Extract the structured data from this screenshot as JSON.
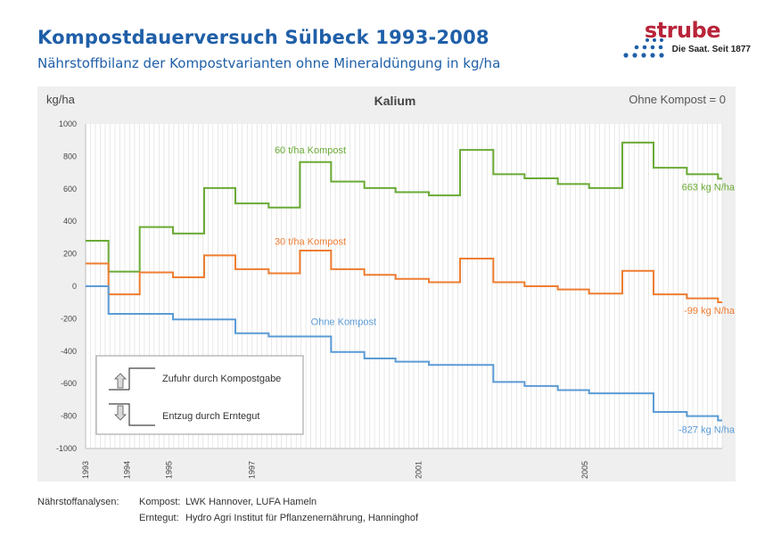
{
  "header": {
    "title": "Kompostdauerversuch Sülbeck 1993-2008",
    "subtitle": "Nährstoffbilanz der Kompostvarianten ohne Mineraldüngung in kg/ha"
  },
  "logo": {
    "word": "strube",
    "tagline": "Die Saat. Seit 1877",
    "colors": {
      "word": "#b8243a",
      "dots": "#1f5fa8"
    }
  },
  "footer": {
    "label": "Nährstoffanalysen:",
    "rows": [
      {
        "key": "Kompost:",
        "value": "LWK Hannover, LUFA Hameln"
      },
      {
        "key": "Erntegut:",
        "value": "Hydro Agri Institut für Pflanzenernährung, Hanninghof"
      }
    ]
  },
  "chart_data": {
    "type": "line",
    "step": true,
    "title": "Kalium",
    "ylabel": "kg/ha",
    "note": "Ohne Kompost = 0",
    "ylim": [
      -1000,
      1000
    ],
    "yticks": [
      -1000,
      -800,
      -600,
      -400,
      -200,
      0,
      200,
      400,
      600,
      800,
      1000
    ],
    "xlim": [
      1993,
      2008.3
    ],
    "xticks": [
      1993,
      1994,
      1995,
      1997,
      2001,
      2005
    ],
    "grid": "vertical",
    "series": [
      {
        "name": "60 t/ha Kompost",
        "color": "#6aaa35",
        "end_label": "663 kg N/ha",
        "points": [
          [
            1993,
            280
          ],
          [
            1993.55,
            280
          ],
          [
            1993.55,
            90
          ],
          [
            1994.3,
            90
          ],
          [
            1994.3,
            365
          ],
          [
            1995.1,
            365
          ],
          [
            1995.1,
            325
          ],
          [
            1995.85,
            325
          ],
          [
            1995.85,
            605
          ],
          [
            1996.6,
            605
          ],
          [
            1996.6,
            510
          ],
          [
            1997.4,
            510
          ],
          [
            1997.4,
            485
          ],
          [
            1998.15,
            485
          ],
          [
            1998.15,
            765
          ],
          [
            1998.9,
            765
          ],
          [
            1998.9,
            645
          ],
          [
            1999.7,
            645
          ],
          [
            1999.7,
            605
          ],
          [
            2000.45,
            605
          ],
          [
            2000.45,
            580
          ],
          [
            2001.25,
            580
          ],
          [
            2001.25,
            560
          ],
          [
            2002.0,
            560
          ],
          [
            2002.0,
            840
          ],
          [
            2002.8,
            840
          ],
          [
            2002.8,
            690
          ],
          [
            2003.55,
            690
          ],
          [
            2003.55,
            665
          ],
          [
            2004.35,
            665
          ],
          [
            2004.35,
            630
          ],
          [
            2005.1,
            630
          ],
          [
            2005.1,
            605
          ],
          [
            2005.9,
            605
          ],
          [
            2005.9,
            885
          ],
          [
            2006.65,
            885
          ],
          [
            2006.65,
            730
          ],
          [
            2007.45,
            730
          ],
          [
            2007.45,
            690
          ],
          [
            2008.2,
            690
          ],
          [
            2008.2,
            663
          ],
          [
            2008.9,
            663
          ]
        ]
      },
      {
        "name": "30 t/ha Kompost",
        "color": "#ee7d31",
        "end_label": "-99 kg N/ha",
        "points": [
          [
            1993,
            140
          ],
          [
            1993.55,
            140
          ],
          [
            1993.55,
            -50
          ],
          [
            1994.3,
            -50
          ],
          [
            1994.3,
            85
          ],
          [
            1995.1,
            85
          ],
          [
            1995.1,
            55
          ],
          [
            1995.85,
            55
          ],
          [
            1995.85,
            190
          ],
          [
            1996.6,
            190
          ],
          [
            1996.6,
            105
          ],
          [
            1997.4,
            105
          ],
          [
            1997.4,
            80
          ],
          [
            1998.15,
            80
          ],
          [
            1998.15,
            220
          ],
          [
            1998.9,
            220
          ],
          [
            1998.9,
            105
          ],
          [
            1999.7,
            105
          ],
          [
            1999.7,
            70
          ],
          [
            2000.45,
            70
          ],
          [
            2000.45,
            45
          ],
          [
            2001.25,
            45
          ],
          [
            2001.25,
            25
          ],
          [
            2002.0,
            25
          ],
          [
            2002.0,
            170
          ],
          [
            2002.8,
            170
          ],
          [
            2002.8,
            25
          ],
          [
            2003.55,
            25
          ],
          [
            2003.55,
            0
          ],
          [
            2004.35,
            0
          ],
          [
            2004.35,
            -20
          ],
          [
            2005.1,
            -20
          ],
          [
            2005.1,
            -45
          ],
          [
            2005.9,
            -45
          ],
          [
            2005.9,
            95
          ],
          [
            2006.65,
            95
          ],
          [
            2006.65,
            -50
          ],
          [
            2007.45,
            -50
          ],
          [
            2007.45,
            -75
          ],
          [
            2008.2,
            -75
          ],
          [
            2008.2,
            -99
          ],
          [
            2008.9,
            -99
          ]
        ]
      },
      {
        "name": "Ohne Kompost",
        "color": "#5b9bd5",
        "end_label": "-827 kg N/ha",
        "points": [
          [
            1993,
            0
          ],
          [
            1993.55,
            0
          ],
          [
            1993.55,
            -170
          ],
          [
            1995.1,
            -170
          ],
          [
            1995.1,
            -205
          ],
          [
            1996.6,
            -205
          ],
          [
            1996.6,
            -290
          ],
          [
            1997.4,
            -290
          ],
          [
            1997.4,
            -310
          ],
          [
            1998.9,
            -310
          ],
          [
            1998.9,
            -405
          ],
          [
            1999.7,
            -405
          ],
          [
            1999.7,
            -445
          ],
          [
            2000.45,
            -445
          ],
          [
            2000.45,
            -465
          ],
          [
            2001.25,
            -465
          ],
          [
            2001.25,
            -485
          ],
          [
            2002.8,
            -485
          ],
          [
            2002.8,
            -590
          ],
          [
            2003.55,
            -590
          ],
          [
            2003.55,
            -615
          ],
          [
            2004.35,
            -615
          ],
          [
            2004.35,
            -640
          ],
          [
            2005.1,
            -640
          ],
          [
            2005.1,
            -660
          ],
          [
            2006.65,
            -660
          ],
          [
            2006.65,
            -775
          ],
          [
            2007.45,
            -775
          ],
          [
            2007.45,
            -800
          ],
          [
            2008.2,
            -800
          ],
          [
            2008.2,
            -827
          ],
          [
            2008.9,
            -827
          ]
        ]
      }
    ],
    "legend_box": {
      "items": [
        {
          "icon": "arrow-up-icon",
          "label": "Zufuhr durch Kompostgabe"
        },
        {
          "icon": "arrow-down-icon",
          "label": "Entzug durch Erntegut"
        }
      ]
    }
  }
}
